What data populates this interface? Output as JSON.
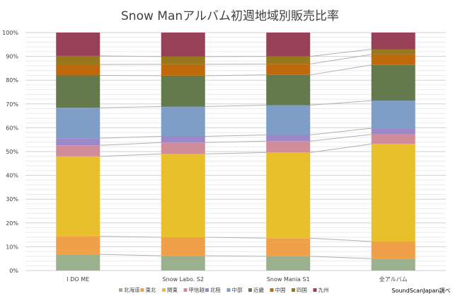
{
  "chart_data": {
    "type": "bar",
    "stacked": true,
    "title": "Snow Manアルバム初週地域別販売比率",
    "source_note": "SoundScanJapan調べ",
    "categories": [
      "I DO ME",
      "Snow Labo. S2",
      "Snow Mania S1",
      "全アルバム"
    ],
    "y_ticks": [
      "0%",
      "10%",
      "20%",
      "30%",
      "40%",
      "50%",
      "60%",
      "70%",
      "80%",
      "90%",
      "100%"
    ],
    "ylim": [
      0,
      100
    ],
    "grid": true,
    "legend_position": "bottom",
    "series": [
      {
        "name": "北海道",
        "color": "#9bb08c",
        "values": [
          6.8,
          6.2,
          6.0,
          5.0
        ]
      },
      {
        "name": "東北",
        "color": "#f0a048",
        "values": [
          7.6,
          7.8,
          7.6,
          7.2
        ]
      },
      {
        "name": "関東",
        "color": "#e8c02c",
        "values": [
          33.6,
          35.0,
          36.0,
          41.0
        ]
      },
      {
        "name": "甲信越",
        "color": "#d08c98",
        "values": [
          4.6,
          4.8,
          4.8,
          4.0
        ]
      },
      {
        "name": "北陸",
        "color": "#9c88c8",
        "values": [
          3.0,
          2.6,
          2.6,
          2.6
        ]
      },
      {
        "name": "中部",
        "color": "#7e9ec8",
        "values": [
          12.8,
          12.5,
          12.5,
          11.6
        ]
      },
      {
        "name": "近畿",
        "color": "#647a4c",
        "values": [
          13.6,
          13.0,
          12.7,
          15.0
        ]
      },
      {
        "name": "中国",
        "color": "#c0680c",
        "values": [
          4.6,
          4.8,
          4.6,
          4.4
        ]
      },
      {
        "name": "四国",
        "color": "#98781c",
        "values": [
          3.6,
          3.2,
          3.2,
          2.2
        ]
      },
      {
        "name": "九州",
        "color": "#984058",
        "values": [
          9.8,
          10.1,
          10.0,
          7.0
        ]
      }
    ]
  }
}
